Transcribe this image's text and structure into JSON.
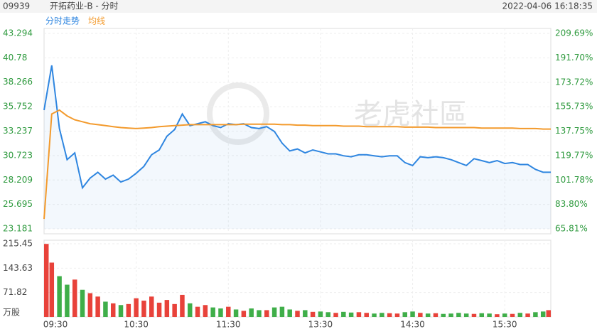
{
  "header": {
    "code": "09939",
    "name": "开拓药业-B - 分时",
    "datetime": "2022-04-06 16:18:35"
  },
  "watermark": "老虎社區",
  "chart_data": {
    "type": "line",
    "categories": [
      "09:30",
      null,
      null,
      null,
      null,
      null,
      null,
      null,
      null,
      null,
      null,
      null,
      "10:30",
      null,
      null,
      null,
      null,
      null,
      null,
      null,
      null,
      null,
      null,
      null,
      "11:30",
      null,
      null,
      null,
      null,
      null,
      null,
      null,
      null,
      null,
      null,
      null,
      "13:30",
      null,
      null,
      null,
      null,
      null,
      null,
      null,
      null,
      null,
      null,
      null,
      "14:30",
      null,
      null,
      null,
      null,
      null,
      null,
      null,
      null,
      null,
      null,
      null,
      "15:30",
      null,
      null,
      null,
      null,
      null,
      null
    ],
    "series": [
      {
        "name": "分时走势",
        "color": "#2f86e0",
        "values": [
          35.4,
          40.0,
          33.5,
          30.3,
          31.0,
          27.4,
          28.4,
          29.0,
          28.3,
          28.7,
          28.0,
          28.3,
          28.9,
          29.6,
          30.8,
          31.3,
          32.7,
          33.4,
          35.0,
          33.8,
          34.0,
          34.2,
          33.8,
          33.6,
          34.0,
          33.9,
          34.0,
          33.6,
          33.5,
          33.7,
          33.2,
          32.0,
          31.2,
          31.4,
          31.0,
          31.3,
          31.1,
          30.9,
          30.9,
          30.7,
          30.6,
          30.8,
          30.8,
          30.7,
          30.6,
          30.7,
          30.7,
          30.0,
          29.7,
          30.6,
          30.5,
          30.6,
          30.5,
          30.3,
          30.0,
          29.7,
          30.4,
          30.2,
          30.0,
          30.2,
          29.9,
          30.0,
          29.8,
          29.8,
          29.3,
          29.0,
          29.0
        ]
      },
      {
        "name": "均线",
        "color": "#f39a2c",
        "values": [
          24.2,
          35.0,
          35.4,
          34.8,
          34.4,
          34.2,
          34.0,
          33.9,
          33.8,
          33.7,
          33.6,
          33.55,
          33.5,
          33.55,
          33.6,
          33.7,
          33.75,
          33.8,
          33.85,
          33.9,
          33.9,
          33.9,
          33.9,
          33.9,
          33.9,
          33.9,
          33.95,
          33.95,
          33.95,
          33.95,
          33.95,
          33.9,
          33.9,
          33.85,
          33.85,
          33.8,
          33.8,
          33.8,
          33.8,
          33.75,
          33.75,
          33.75,
          33.7,
          33.7,
          33.7,
          33.7,
          33.7,
          33.65,
          33.65,
          33.65,
          33.65,
          33.6,
          33.6,
          33.6,
          33.6,
          33.6,
          33.6,
          33.55,
          33.55,
          33.55,
          33.55,
          33.55,
          33.5,
          33.5,
          33.5,
          33.45,
          33.45
        ]
      }
    ],
    "ylim": [
      23.181,
      43.294
    ],
    "yticks": [
      23.181,
      25.695,
      28.209,
      30.723,
      33.237,
      35.752,
      38.266,
      40.78,
      43.294
    ],
    "y2lim": [
      65.81,
      209.69
    ],
    "y2ticks": [
      {
        "value": 65.81,
        "label": "65.81%"
      },
      {
        "value": 83.8,
        "label": "83.80%"
      },
      {
        "value": 101.78,
        "label": "101.78%"
      },
      {
        "value": 119.77,
        "label": "119.77%"
      },
      {
        "value": 137.75,
        "label": "137.75%"
      },
      {
        "value": 155.73,
        "label": "155.73%"
      },
      {
        "value": 173.72,
        "label": "173.72%"
      },
      {
        "value": 191.7,
        "label": "191.70%"
      },
      {
        "value": 209.69,
        "label": "209.69%"
      }
    ],
    "grid": true,
    "volume": {
      "up_color": "#e8423a",
      "down_color": "#3fae49",
      "values": [
        215,
        160,
        120,
        95,
        110,
        80,
        70,
        60,
        45,
        40,
        35,
        38,
        55,
        48,
        60,
        42,
        50,
        38,
        65,
        40,
        30,
        35,
        28,
        25,
        30,
        22,
        18,
        25,
        20,
        20,
        28,
        30,
        22,
        18,
        20,
        15,
        16,
        14,
        12,
        15,
        13,
        14,
        12,
        10,
        12,
        11,
        10,
        14,
        16,
        12,
        10,
        11,
        9,
        10,
        12,
        10,
        9,
        11,
        10,
        8,
        10,
        9,
        12,
        10,
        14,
        16,
        20
      ],
      "ylim": [
        0,
        215.45
      ],
      "yticks": [
        {
          "value": 0,
          "label": "万股"
        },
        71.82,
        143.63,
        215.45
      ]
    }
  }
}
